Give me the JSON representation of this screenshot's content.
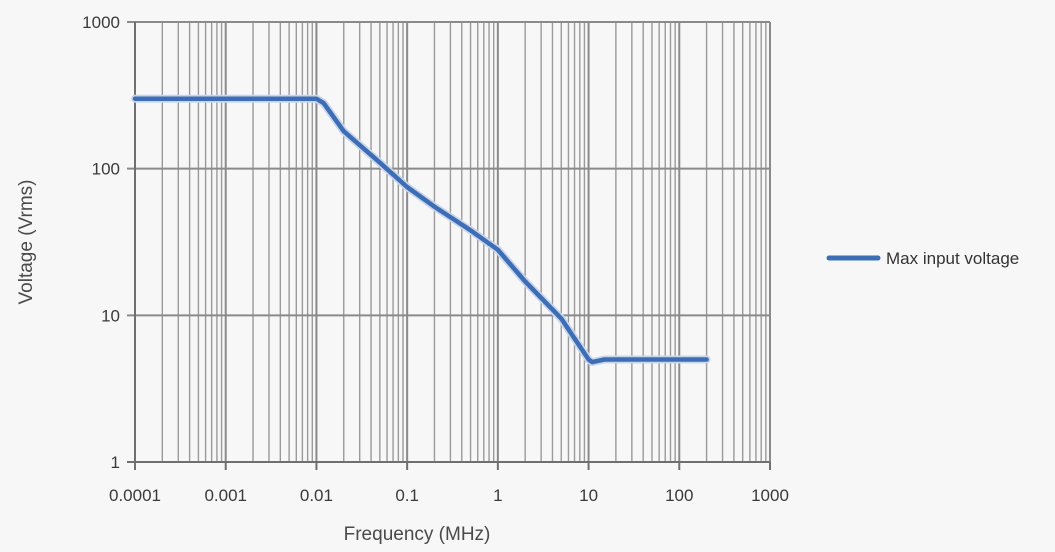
{
  "chart_data": {
    "type": "line",
    "title": "",
    "xlabel": "Frequency (MHz)",
    "ylabel": "Voltage (Vrms)",
    "x_scale": "log",
    "y_scale": "log",
    "xlim": [
      0.0001,
      1000
    ],
    "ylim": [
      1,
      1000
    ],
    "x_ticks": [
      "0.0001",
      "0.001",
      "0.01",
      "0.1",
      "1",
      "10",
      "100",
      "1000"
    ],
    "y_ticks": [
      "1",
      "10",
      "100",
      "1000"
    ],
    "grid": true,
    "legend_position": "right",
    "series": [
      {
        "name": "Max input voltage",
        "color": "#3d6db5",
        "x": [
          0.0001,
          0.001,
          0.01,
          0.012,
          0.02,
          0.05,
          0.1,
          0.2,
          0.5,
          1,
          2,
          5,
          10,
          11,
          15,
          50,
          100,
          200
        ],
        "y": [
          300,
          300,
          300,
          280,
          180,
          110,
          75,
          55,
          38,
          28,
          17,
          9.5,
          5,
          4.8,
          5,
          5,
          5,
          5
        ]
      }
    ]
  }
}
